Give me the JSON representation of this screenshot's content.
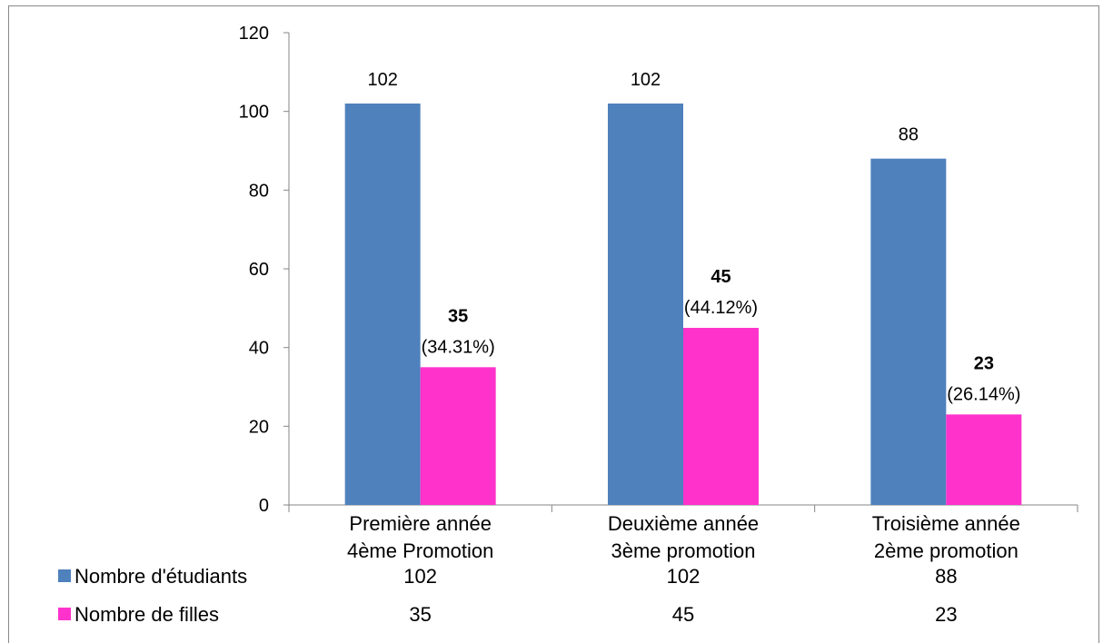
{
  "chart_data": {
    "type": "bar",
    "categories": [
      [
        "Première année",
        "4ème Promotion"
      ],
      [
        "Deuxième année",
        "3ème promotion"
      ],
      [
        "Troisième année",
        "2ème promotion"
      ]
    ],
    "series": [
      {
        "name": "Nombre d'étudiants",
        "color": "#4F81BD",
        "values": [
          102,
          102,
          88
        ],
        "labels": [
          "102",
          "102",
          "88"
        ]
      },
      {
        "name": "Nombre de filles",
        "color": "#FF33CC",
        "values": [
          35,
          45,
          23
        ],
        "labels": [
          "35",
          "45",
          "23"
        ],
        "sublabels": [
          "(34.31%)",
          "(44.12%)",
          "(26.14%)"
        ]
      }
    ],
    "ylim": [
      0,
      120
    ],
    "yticks": [
      0,
      20,
      40,
      60,
      80,
      100,
      120
    ],
    "ytick_labels": [
      "0",
      "20",
      "40",
      "60",
      "80",
      "100",
      "120"
    ],
    "grid": false,
    "legend": "data-table-below",
    "data_table": [
      {
        "series": "Nombre d'étudiants",
        "cells": [
          "102",
          "102",
          "88"
        ]
      },
      {
        "series": "Nombre de filles",
        "cells": [
          "35",
          "45",
          "23"
        ]
      }
    ]
  }
}
